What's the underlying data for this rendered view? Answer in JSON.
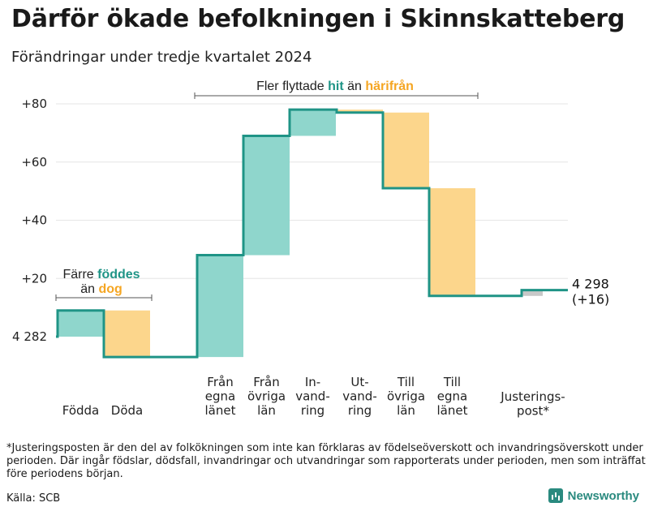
{
  "title": "Därför ökade befolkningen i Skinnskatteberg",
  "subtitle": "Förändringar under tredje kvartalet 2024",
  "footnote": "*Justeringsposten är den del av folkökningen som inte kan förklaras av födelseöverskott och invandringsöverskott under perioden. Där ingår födslar, dödsfall, invandringar och utvandringar som rapporterats under perioden, men som inträffat före periodens början.",
  "source": "Källa: SCB",
  "brand": "Newsworthy",
  "colors": {
    "increase": "#8fd6cc",
    "decrease": "#fcd68c",
    "adjustment": "#c8c8c8",
    "line": "#1f9486",
    "accent_teal": "#1f9486",
    "accent_orange": "#f5a623"
  },
  "chart_data": {
    "type": "waterfall",
    "start_value": 4282,
    "end_value": 4298,
    "end_change": "+16",
    "start_label": "4 282",
    "end_label": "4 298",
    "end_change_label": "(+16)",
    "ylim": [
      -7,
      82
    ],
    "yticks": [
      {
        "value": 20,
        "label": "+20"
      },
      {
        "value": 40,
        "label": "+40"
      },
      {
        "value": 60,
        "label": "+60"
      },
      {
        "value": 80,
        "label": "+80"
      }
    ],
    "steps": [
      {
        "label": [
          "Födda"
        ],
        "value": 9,
        "kind": "increase"
      },
      {
        "label": [
          "Döda"
        ],
        "value": -16,
        "kind": "decrease"
      },
      {
        "label": [
          "Från",
          "egna",
          "länet"
        ],
        "value": 35,
        "kind": "increase"
      },
      {
        "label": [
          "Från",
          "övriga",
          "län"
        ],
        "value": 41,
        "kind": "increase"
      },
      {
        "label": [
          "In-",
          "vand-",
          "ring"
        ],
        "value": 9,
        "kind": "increase"
      },
      {
        "label": [
          "Ut-",
          "vand-",
          "ring"
        ],
        "value": -1,
        "kind": "decrease"
      },
      {
        "label": [
          "Till",
          "övriga",
          "län"
        ],
        "value": -26,
        "kind": "decrease"
      },
      {
        "label": [
          "Till",
          "egna",
          "länet"
        ],
        "value": -37,
        "kind": "decrease"
      },
      {
        "label": [
          "Justerings-",
          "post*"
        ],
        "value": 2,
        "kind": "adjustment"
      }
    ],
    "annotations": [
      {
        "parts": [
          [
            "Färre ",
            "plain"
          ],
          [
            "föddes",
            "teal"
          ]
        ],
        "parts2": [
          [
            "än ",
            "plain"
          ],
          [
            "dog",
            "orange"
          ]
        ]
      },
      {
        "parts": [
          [
            "Fler flyttade ",
            "plain"
          ],
          [
            "hit",
            "teal"
          ],
          [
            "  än ",
            "plain"
          ],
          [
            "härifrån",
            "orange"
          ]
        ]
      }
    ]
  }
}
